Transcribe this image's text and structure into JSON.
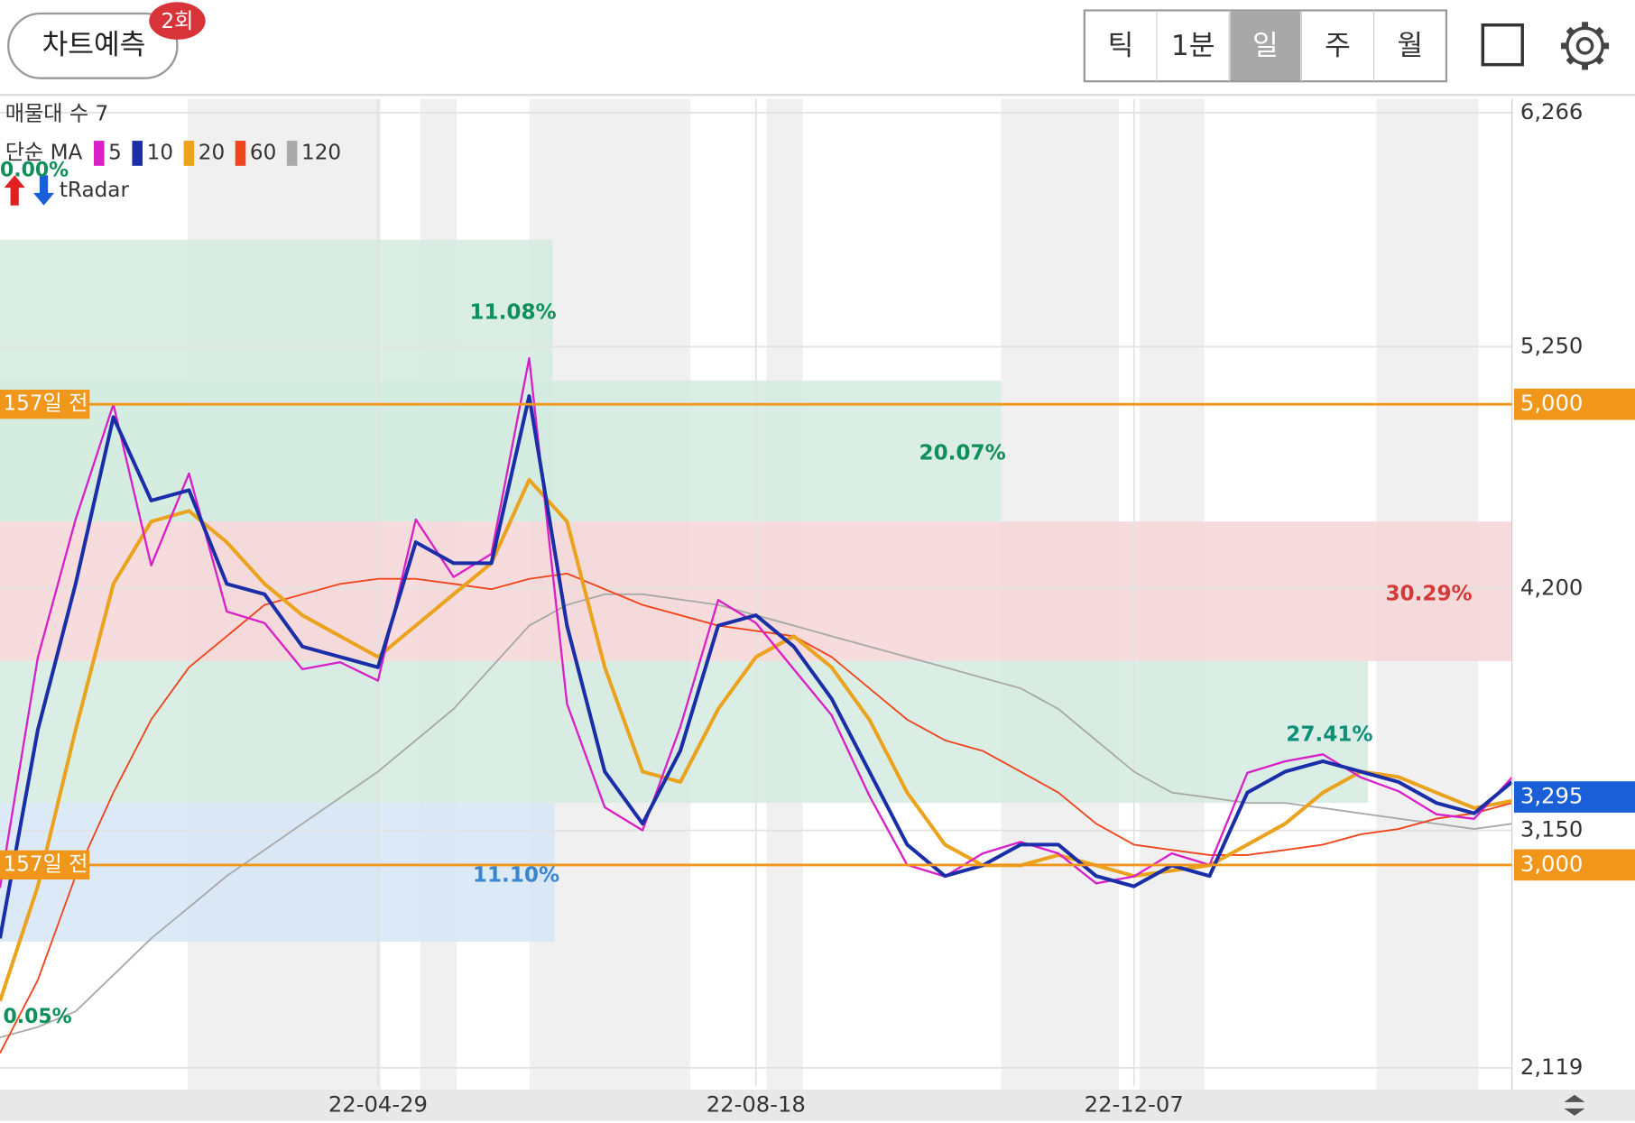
{
  "header": {
    "predict_button": "차트예측",
    "badge": "2회",
    "periods": [
      "틱",
      "1분",
      "일",
      "주",
      "월"
    ],
    "selected_period": "일"
  },
  "chart_data": {
    "type": "line",
    "overlay_label": "매물대 수 7",
    "ma_label": "단순 MA",
    "radar_label": "tRadar",
    "top_left_pct": "0.00%",
    "bottom_left_pct": "0.05%",
    "categories": [
      null,
      null,
      null,
      null,
      null,
      null,
      null,
      null,
      null,
      null,
      "22-04-29",
      null,
      null,
      null,
      null,
      null,
      null,
      null,
      null,
      null,
      "22-08-18",
      null,
      null,
      null,
      null,
      null,
      null,
      null,
      null,
      null,
      "22-12-07",
      null,
      null,
      null,
      null,
      null,
      null,
      null,
      null,
      null,
      null
    ],
    "series": [
      {
        "name": "5",
        "color": "#d81fc8",
        "values": [
          2900,
          3900,
          4500,
          5000,
          4300,
          4700,
          4100,
          4050,
          3850,
          3880,
          3800,
          4500,
          4250,
          4350,
          5200,
          3700,
          3250,
          3150,
          3600,
          4150,
          4050,
          3850,
          3650,
          3300,
          3000,
          2950,
          3050,
          3100,
          3050,
          2920,
          2950,
          3050,
          3000,
          3400,
          3450,
          3480,
          3380,
          3320,
          3220,
          3200,
          3380
        ]
      },
      {
        "name": "10",
        "color": "#1a2ea8",
        "values": [
          2681,
          3586,
          4220,
          4944,
          4582,
          4627,
          4220,
          4175,
          3948,
          3903,
          3858,
          4401,
          4310,
          4310,
          5035,
          4039,
          3405,
          3179,
          3496,
          4039,
          4084,
          3948,
          3722,
          3405,
          3088,
          2952,
          2998,
          3088,
          3088,
          2952,
          2907,
          2998,
          2952,
          3314,
          3405,
          3450,
          3405,
          3360,
          3269,
          3224,
          3360
        ]
      },
      {
        "name": "20",
        "color": "#eba21c",
        "values": [
          2409,
          2907,
          3586,
          4220,
          4491,
          4537,
          4401,
          4220,
          4084,
          3993,
          3903,
          4039,
          4175,
          4310,
          4672,
          4491,
          3858,
          3405,
          3360,
          3677,
          3903,
          3993,
          3858,
          3631,
          3314,
          3088,
          2998,
          2998,
          3043,
          2998,
          2952,
          2975,
          2998,
          3088,
          3179,
          3314,
          3405,
          3382,
          3314,
          3247,
          3278
        ]
      },
      {
        "name": "60",
        "color": "#f0441c",
        "values": [
          2183,
          2500,
          2952,
          3314,
          3631,
          3858,
          3993,
          4129,
          4175,
          4220,
          4242,
          4242,
          4220,
          4197,
          4242,
          4265,
          4197,
          4129,
          4084,
          4039,
          4016,
          3993,
          3903,
          3767,
          3631,
          3541,
          3495,
          3405,
          3314,
          3179,
          3088,
          3065,
          3043,
          3043,
          3065,
          3088,
          3133,
          3156,
          3201,
          3224,
          3269
        ]
      },
      {
        "name": "120",
        "color": "#a9a9a9",
        "values": [
          2251,
          2296,
          2364,
          2522,
          2681,
          2816,
          2952,
          3065,
          3179,
          3292,
          3405,
          3541,
          3677,
          3858,
          4039,
          4129,
          4175,
          4175,
          4152,
          4129,
          4084,
          4039,
          3993,
          3948,
          3903,
          3858,
          3812,
          3767,
          3677,
          3541,
          3405,
          3314,
          3292,
          3269,
          3269,
          3247,
          3224,
          3201,
          3179,
          3156,
          3179
        ]
      }
    ],
    "levels": [
      {
        "value": 5000,
        "label": "5,000",
        "note": "157일 전",
        "color": "#f0961a"
      },
      {
        "value": 3000,
        "label": "3,000",
        "note": "157일 전",
        "color": "#f0961a"
      }
    ],
    "current": {
      "value": 3295,
      "label": "3,295",
      "color": "#1b5fd8"
    },
    "zones": [
      {
        "low": 4491,
        "high": 5714,
        "label": "11.08%",
        "color": "#0f8f5a"
      },
      {
        "low": 4491,
        "high": 5103,
        "label": "20.07%",
        "color": "#0f8f5a"
      },
      {
        "low": 3885,
        "high": 4491,
        "label": "30.29%",
        "color": "#d33a3a"
      },
      {
        "low": 3269,
        "high": 3885,
        "label": "27.41%",
        "color": "#0f8f78"
      },
      {
        "low": 2667,
        "high": 3269,
        "label": "11.10%",
        "color": "#3a85cf"
      }
    ],
    "ylim": [
      2038,
      6325
    ],
    "yticks": [
      {
        "value": 6266,
        "label": "6,266"
      },
      {
        "value": 5250,
        "label": "5,250"
      },
      {
        "value": 4200,
        "label": "4,200"
      },
      {
        "value": 3150,
        "label": "3,150"
      },
      {
        "value": 2119,
        "label": "2,119"
      }
    ],
    "grid": true
  }
}
